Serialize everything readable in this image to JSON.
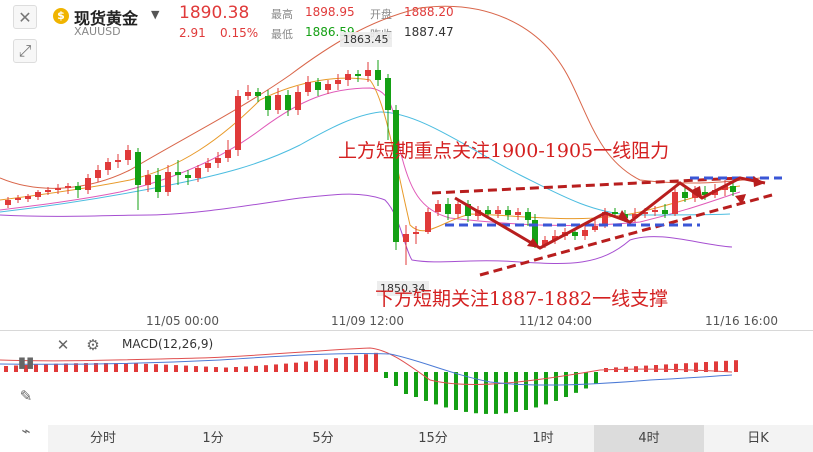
{
  "header": {
    "symbol_icon_glyph": "$",
    "symbol_name": "现货黄金",
    "symbol_code": "XAUUSD",
    "price": "1890.38",
    "change": "2.91",
    "change_pct": "0.15%",
    "high_label": "最高",
    "high_value": "1898.95",
    "open_label": "开盘",
    "open_value": "1888.20",
    "low_label": "最低",
    "low_value": "1886.59",
    "prev_close_label": "昨收",
    "prev_close_value": "1887.47"
  },
  "chart": {
    "high_marker": "1863.45",
    "low_marker": "1850.34",
    "x_ticks": [
      "11/05 00:00",
      "11/09 12:00",
      "11/12 04:00",
      "11/16 16:00"
    ],
    "annotation_top": "上方短期重点关注1900-1905一线阻力",
    "annotation_bottom": "下方短期关注1887-1882一线支撑"
  },
  "macd": {
    "label": "MACD(12,26,9)"
  },
  "timeframes": [
    "分时",
    "1分",
    "5分",
    "15分",
    "1时",
    "4时",
    "日K"
  ],
  "active_timeframe": "4时",
  "colors": {
    "up": "#e03a3a",
    "down": "#14a014",
    "accent": "#d42020"
  }
}
